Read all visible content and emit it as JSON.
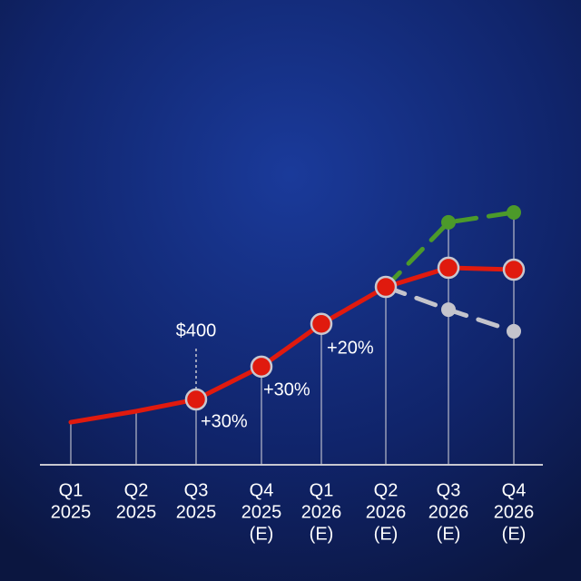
{
  "chart_data": {
    "type": "line",
    "categories": [
      [
        "Q1",
        "2025"
      ],
      [
        "Q2",
        "2025"
      ],
      [
        "Q3",
        "2025"
      ],
      [
        "Q4",
        "2025",
        "(E)"
      ],
      [
        "Q1",
        "2026",
        "(E)"
      ],
      [
        "Q2",
        "2026",
        "(E)"
      ],
      [
        "Q3",
        "2026",
        "(E)"
      ],
      [
        "Q4",
        "2026",
        "(E)"
      ]
    ],
    "ylim": [
      0,
      1200
    ],
    "series": [
      {
        "color": "#e01a0e",
        "dashed": false,
        "values": [
          317,
          357,
          400,
          520,
          676,
          811,
          881,
          874
        ]
      },
      {
        "color": "#4c9a2a",
        "dashed": true,
        "values": [
          null,
          null,
          null,
          null,
          null,
          811,
          1047,
          1083
        ]
      },
      {
        "color": "#c4c4cc",
        "dashed": true,
        "values": [
          null,
          null,
          null,
          null,
          null,
          811,
          728,
          649
        ]
      }
    ],
    "annotations": [
      "$400",
      "+30%",
      "+30%",
      "+20%"
    ]
  }
}
